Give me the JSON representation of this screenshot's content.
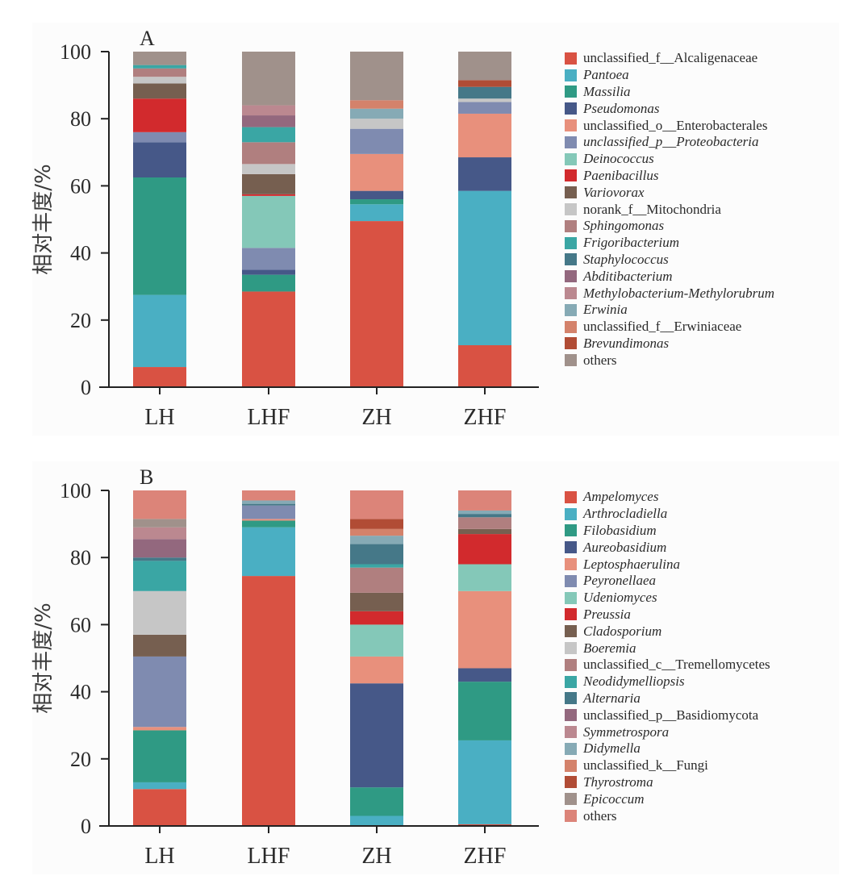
{
  "chart_data": [
    {
      "panel": "A",
      "type": "bar",
      "stacked": true,
      "title": "A",
      "xlabel": "",
      "ylabel": "相对丰度/%",
      "ylim": [
        0,
        100
      ],
      "yticks": [
        0,
        20,
        40,
        60,
        80,
        100
      ],
      "grid": false,
      "legend_position": "right",
      "categories": [
        "LH",
        "LHF",
        "ZH",
        "ZHF"
      ],
      "series": [
        {
          "name": "unclassified_f__Alcaligenaceae",
          "italic": false,
          "color": "#d95243",
          "values": [
            6,
            28.5,
            49.5,
            12.5
          ]
        },
        {
          "name": "Pantoea",
          "italic": true,
          "color": "#4aafc3",
          "values": [
            21.5,
            0,
            5,
            46
          ]
        },
        {
          "name": "Massilia",
          "italic": true,
          "color": "#2f9a84",
          "values": [
            35,
            5,
            1.5,
            0
          ]
        },
        {
          "name": "Pseudomonas",
          "italic": true,
          "color": "#465888",
          "values": [
            10.5,
            1.5,
            2.5,
            10
          ]
        },
        {
          "name": "unclassified_o__Enterobacterales",
          "italic": false,
          "color": "#e8907c",
          "values": [
            0,
            0,
            11,
            13
          ]
        },
        {
          "name": "unclassified_p__Proteobacteria",
          "italic": true,
          "color": "#7f8bb0",
          "values": [
            3,
            6.5,
            7.5,
            3.5
          ]
        },
        {
          "name": "Deinococcus",
          "italic": true,
          "color": "#84c8b8",
          "values": [
            0,
            15.5,
            0,
            0
          ]
        },
        {
          "name": "Paenibacillus",
          "italic": true,
          "color": "#d22a2d",
          "values": [
            10,
            0.5,
            0,
            0
          ]
        },
        {
          "name": "Variovorax",
          "italic": true,
          "color": "#765f50",
          "values": [
            4.5,
            6,
            0,
            0
          ]
        },
        {
          "name": "norank_f__Mitochondria",
          "italic": false,
          "color": "#c6c6c6",
          "values": [
            2,
            3,
            3,
            1
          ]
        },
        {
          "name": "Sphingomonas",
          "italic": true,
          "color": "#b07f7f",
          "values": [
            2.5,
            6.5,
            0,
            0
          ]
        },
        {
          "name": "Frigoribacterium",
          "italic": true,
          "color": "#3aa6a4",
          "values": [
            1,
            4.5,
            0,
            0
          ]
        },
        {
          "name": "Staphylococcus",
          "italic": true,
          "color": "#457888",
          "values": [
            0,
            0,
            0,
            3.5
          ]
        },
        {
          "name": "Abditibacterium",
          "italic": true,
          "color": "#93687e",
          "values": [
            0,
            3.5,
            0,
            0
          ]
        },
        {
          "name": "Methylobacterium-Methylorubrum",
          "italic": true,
          "color": "#bb8890",
          "values": [
            0,
            3,
            0,
            0
          ]
        },
        {
          "name": "Erwinia",
          "italic": true,
          "color": "#86aab5",
          "values": [
            0,
            0,
            3,
            0
          ]
        },
        {
          "name": "unclassified_f__Erwiniaceae",
          "italic": false,
          "color": "#d4826b",
          "values": [
            0,
            0,
            2.5,
            0
          ]
        },
        {
          "name": "Brevundimonas",
          "italic": true,
          "color": "#b14c35",
          "values": [
            0,
            0,
            0,
            2
          ]
        },
        {
          "name": "others",
          "italic": false,
          "color": "#a0918b",
          "values": [
            4,
            16,
            14.5,
            8.5
          ]
        }
      ]
    },
    {
      "panel": "B",
      "type": "bar",
      "stacked": true,
      "title": "B",
      "xlabel": "",
      "ylabel": "相对丰度/%",
      "ylim": [
        0,
        100
      ],
      "yticks": [
        0,
        20,
        40,
        60,
        80,
        100
      ],
      "grid": false,
      "legend_position": "right",
      "categories": [
        "LH",
        "LHF",
        "ZH",
        "ZHF"
      ],
      "series": [
        {
          "name": "Ampelomyces",
          "italic": true,
          "color": "#d95243",
          "values": [
            11,
            74.5,
            0,
            0.5
          ]
        },
        {
          "name": "Arthrocladiella",
          "italic": true,
          "color": "#4aafc3",
          "values": [
            2,
            14.5,
            3,
            25
          ]
        },
        {
          "name": "Filobasidium",
          "italic": true,
          "color": "#2f9a84",
          "values": [
            15.5,
            2,
            8.5,
            17.5
          ]
        },
        {
          "name": "Aureobasidium",
          "italic": true,
          "color": "#465888",
          "values": [
            0,
            0,
            31,
            4
          ]
        },
        {
          "name": "Leptosphaerulina",
          "italic": true,
          "color": "#e8907c",
          "values": [
            1,
            0.5,
            8,
            23
          ]
        },
        {
          "name": "Peyronellaea",
          "italic": true,
          "color": "#7f8bb0",
          "values": [
            21,
            4,
            0,
            0
          ]
        },
        {
          "name": "Udeniomyces",
          "italic": true,
          "color": "#84c8b8",
          "values": [
            0,
            0,
            9.5,
            8
          ]
        },
        {
          "name": "Preussia",
          "italic": true,
          "color": "#d22a2d",
          "values": [
            0,
            0,
            4,
            9
          ]
        },
        {
          "name": "Cladosporium",
          "italic": true,
          "color": "#765f50",
          "values": [
            6.5,
            0,
            5.5,
            1.5
          ]
        },
        {
          "name": "Boeremia",
          "italic": true,
          "color": "#c6c6c6",
          "values": [
            13,
            0,
            0,
            0
          ]
        },
        {
          "name": "unclassified_c__Tremellomycetes",
          "italic": false,
          "color": "#b07f7f",
          "values": [
            0,
            0,
            7.5,
            3.5
          ]
        },
        {
          "name": "Neodidymelliopsis",
          "italic": true,
          "color": "#3aa6a4",
          "values": [
            9,
            0,
            1,
            0
          ]
        },
        {
          "name": "Alternaria",
          "italic": true,
          "color": "#457888",
          "values": [
            1,
            0.5,
            6,
            1
          ]
        },
        {
          "name": "unclassified_p__Basidiomycota",
          "italic": false,
          "color": "#93687e",
          "values": [
            5.5,
            0,
            0,
            0
          ]
        },
        {
          "name": "Symmetrospora",
          "italic": true,
          "color": "#bb8890",
          "values": [
            3.5,
            0,
            0,
            0
          ]
        },
        {
          "name": "Didymella",
          "italic": true,
          "color": "#86aab5",
          "values": [
            0,
            1,
            2.5,
            1
          ]
        },
        {
          "name": "unclassified_k__Fungi",
          "italic": false,
          "color": "#d4826b",
          "values": [
            0,
            0,
            2,
            0
          ]
        },
        {
          "name": "Thyrostroma",
          "italic": true,
          "color": "#b14c35",
          "values": [
            0,
            0,
            3,
            0
          ]
        },
        {
          "name": "Epicoccum",
          "italic": true,
          "color": "#a0918b",
          "values": [
            2.5,
            0,
            0,
            0
          ]
        },
        {
          "name": "others",
          "italic": false,
          "color": "#dc8479",
          "values": [
            8.5,
            3,
            8.5,
            6
          ]
        }
      ]
    }
  ]
}
